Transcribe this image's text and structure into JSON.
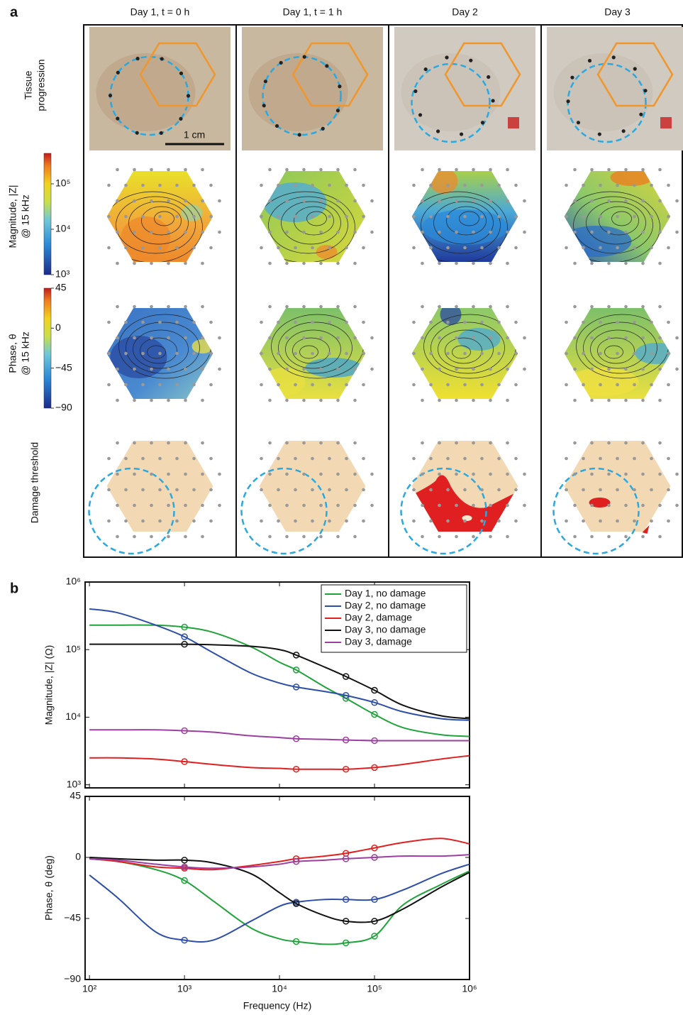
{
  "panel_a": {
    "label": "a",
    "columns": [
      "Day 1, t = 0 h",
      "Day 1, t = 1 h",
      "Day 2",
      "Day 3"
    ],
    "rows": [
      [
        "Tissue",
        "progression"
      ],
      [
        "Magnitude, |Z|",
        "@ 15 kHz"
      ],
      [
        "Phase, θ",
        "@ 15 kHz"
      ],
      [
        "Damage threshold"
      ]
    ],
    "scale_bar": "1 cm",
    "magnitude_colorbar": {
      "lim": [
        1000,
        470000
      ],
      "scale": "log",
      "ticks": [
        {
          "value": 100000,
          "label": "10⁵"
        },
        {
          "value": 10000,
          "label": "10⁴"
        },
        {
          "value": 1000,
          "label": "10³"
        }
      ]
    },
    "phase_colorbar": {
      "lim": [
        -90,
        45
      ],
      "ticks": [
        45,
        0,
        {
          "value": -45,
          "label": "−45"
        },
        {
          "value": -90,
          "label": "−90"
        }
      ]
    }
  },
  "panel_b": {
    "label": "b"
  },
  "chart_data": [
    {
      "type": "line",
      "xscale": "log",
      "yscale": "log",
      "ylabel": "Magnitude, |Z| (Ω)",
      "x": [
        100,
        200,
        500,
        1000,
        2000,
        5000,
        10000,
        15000,
        30000,
        50000,
        100000,
        200000,
        500000,
        1000000
      ],
      "marker_x": [
        1000,
        15000,
        50000,
        100000
      ],
      "xlim": [
        90,
        1000000
      ],
      "xticks": [
        100,
        1000,
        10000,
        100000,
        1000000
      ],
      "xtick_labels": false,
      "ylim": [
        900,
        1000000
      ],
      "yticks": [
        {
          "value": 1000000,
          "label": "10⁶"
        },
        {
          "value": 100000,
          "label": "10⁵"
        },
        {
          "value": 10000,
          "label": "10⁴"
        },
        {
          "value": 1000,
          "label": "10³"
        }
      ],
      "legend": "upper right",
      "series": [
        {
          "name": "Day 1, no damage",
          "color": "#1fa33a",
          "values": [
            230000,
            230000,
            230000,
            215000,
            180000,
            110000,
            65000,
            50000,
            28000,
            19000,
            11000,
            7000,
            5500,
            5200
          ]
        },
        {
          "name": "Day 2, no damage",
          "color": "#2e4fa8",
          "values": [
            400000,
            350000,
            230000,
            155000,
            90000,
            45000,
            32000,
            28000,
            24000,
            21000,
            16500,
            12000,
            9500,
            9000
          ]
        },
        {
          "name": "Day 2, damage",
          "color": "#e02020",
          "values": [
            2500,
            2500,
            2400,
            2200,
            2000,
            1800,
            1750,
            1700,
            1700,
            1700,
            1800,
            2000,
            2400,
            2700
          ]
        },
        {
          "name": "Day 3, no damage",
          "color": "#111111",
          "values": [
            120000,
            120000,
            120000,
            120000,
            118000,
            112000,
            100000,
            83000,
            55000,
            40000,
            25000,
            15000,
            10500,
            9500
          ]
        },
        {
          "name": "Day 3, damage",
          "color": "#9b3fa0",
          "values": [
            6500,
            6500,
            6500,
            6300,
            6000,
            5300,
            5000,
            4800,
            4700,
            4600,
            4500,
            4500,
            4500,
            4500
          ]
        }
      ]
    },
    {
      "type": "line",
      "xscale": "log",
      "ylabel": "Phase, θ (deg)",
      "xlabel": "Frequency  (Hz)",
      "x": [
        100,
        200,
        500,
        1000,
        2000,
        5000,
        10000,
        15000,
        30000,
        50000,
        100000,
        200000,
        500000,
        1000000
      ],
      "marker_x": [
        1000,
        15000,
        50000,
        100000
      ],
      "xlim": [
        90,
        1000000
      ],
      "xticks": [
        {
          "value": 100,
          "label": "10²"
        },
        {
          "value": 1000,
          "label": "10³"
        },
        {
          "value": 10000,
          "label": "10⁴"
        },
        {
          "value": 100000,
          "label": "10⁵"
        },
        {
          "value": 1000000,
          "label": "10⁶"
        }
      ],
      "xtick_labels": true,
      "ylim": [
        -90,
        45
      ],
      "yticks": [
        45,
        0,
        {
          "value": -45,
          "label": "−45"
        },
        {
          "value": -90,
          "label": "−90"
        }
      ],
      "series": [
        {
          "name": "Day 1, no damage",
          "color": "#1fa33a",
          "values": [
            -1,
            -3,
            -9,
            -17,
            -32,
            -52,
            -60,
            -62,
            -64,
            -63,
            -58,
            -35,
            -20,
            -10
          ]
        },
        {
          "name": "Day 2, no damage",
          "color": "#2e4fa8",
          "values": [
            -13,
            -30,
            -55,
            -61,
            -61,
            -47,
            -36,
            -33,
            -31,
            -31,
            -31,
            -24,
            -12,
            -5
          ]
        },
        {
          "name": "Day 2, damage",
          "color": "#e02020",
          "values": [
            -1,
            -3,
            -7,
            -8,
            -9,
            -6,
            -3,
            -1,
            1,
            3,
            7,
            11,
            14,
            10
          ]
        },
        {
          "name": "Day 3, no damage",
          "color": "#111111",
          "values": [
            0,
            -1,
            -2,
            -2,
            -4,
            -12,
            -26,
            -34,
            -43,
            -47,
            -47,
            -38,
            -22,
            -11
          ]
        },
        {
          "name": "Day 3, damage",
          "color": "#9b3fa0",
          "values": [
            -1,
            -2,
            -5,
            -7,
            -8,
            -7,
            -5,
            -3,
            -2,
            -1,
            0,
            1,
            1,
            2
          ]
        }
      ]
    }
  ]
}
